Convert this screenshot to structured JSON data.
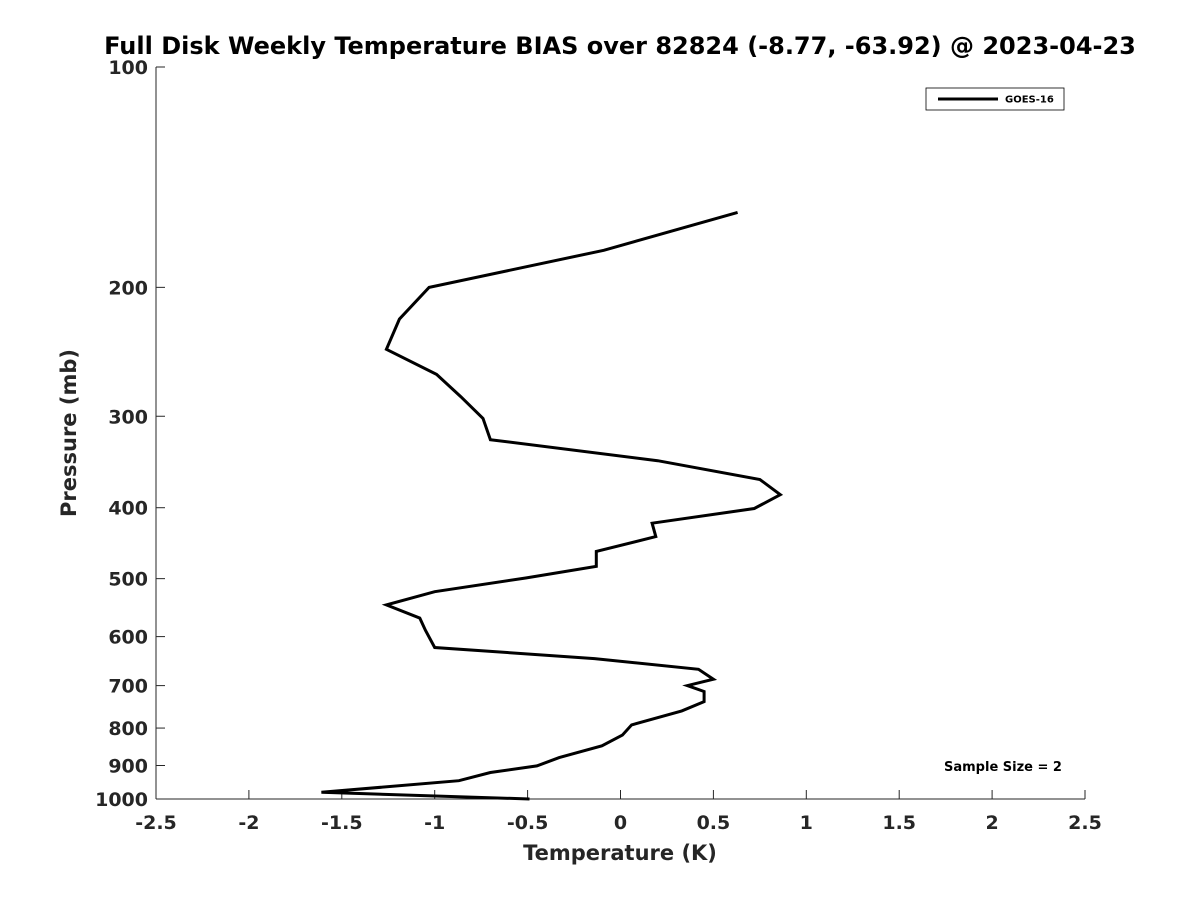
{
  "chart_data": {
    "type": "line",
    "title": "Full Disk Weekly Temperature BIAS over 82824 (-8.77, -63.92) @ 2023-04-23",
    "xlabel": "Temperature (K)",
    "ylabel": "Pressure (mb)",
    "xlim": [
      -2.5,
      2.5
    ],
    "ylim": [
      1000,
      100
    ],
    "y_scale": "log",
    "y_reversed": true,
    "grid": false,
    "x_ticks": [
      -2.5,
      -2,
      -1.5,
      -1,
      -0.5,
      0,
      0.5,
      1,
      1.5,
      2,
      2.5
    ],
    "x_tick_labels": [
      "-2.5",
      "-2",
      "-1.5",
      "-1",
      "-0.5",
      "0",
      "0.5",
      "1",
      "1.5",
      "2",
      "2.5"
    ],
    "y_ticks": [
      100,
      200,
      300,
      400,
      500,
      600,
      700,
      800,
      900,
      1000
    ],
    "y_tick_labels": [
      "100",
      "200",
      "300",
      "400",
      "500",
      "600",
      "700",
      "800",
      "900",
      "1000"
    ],
    "legend_position": "top-right",
    "annotation": "Sample Size = 2",
    "series": [
      {
        "name": "GOES-16",
        "color": "#000000",
        "x": [
          0.63,
          -0.09,
          -1.03,
          -1.19,
          -1.26,
          -0.99,
          -0.86,
          -0.74,
          -0.7,
          0.2,
          0.75,
          0.86,
          0.72,
          0.17,
          0.19,
          -0.13,
          -0.13,
          -0.51,
          -1.0,
          -1.26,
          -1.08,
          -1.05,
          -1.0,
          -0.14,
          0.42,
          0.5,
          0.36,
          0.45,
          0.45,
          0.33,
          0.06,
          0.01,
          -0.1,
          -0.33,
          -0.45,
          -0.7,
          -0.87,
          -1.61,
          -0.49
        ],
        "y": [
          158,
          178,
          200,
          221,
          243,
          263,
          282,
          302,
          323,
          345,
          366,
          384,
          401,
          420,
          438,
          459,
          481,
          499,
          521,
          543,
          566,
          588,
          621,
          643,
          665,
          686,
          700,
          713,
          736,
          758,
          792,
          818,
          846,
          878,
          901,
          920,
          944,
          979,
          1000
        ]
      }
    ]
  }
}
